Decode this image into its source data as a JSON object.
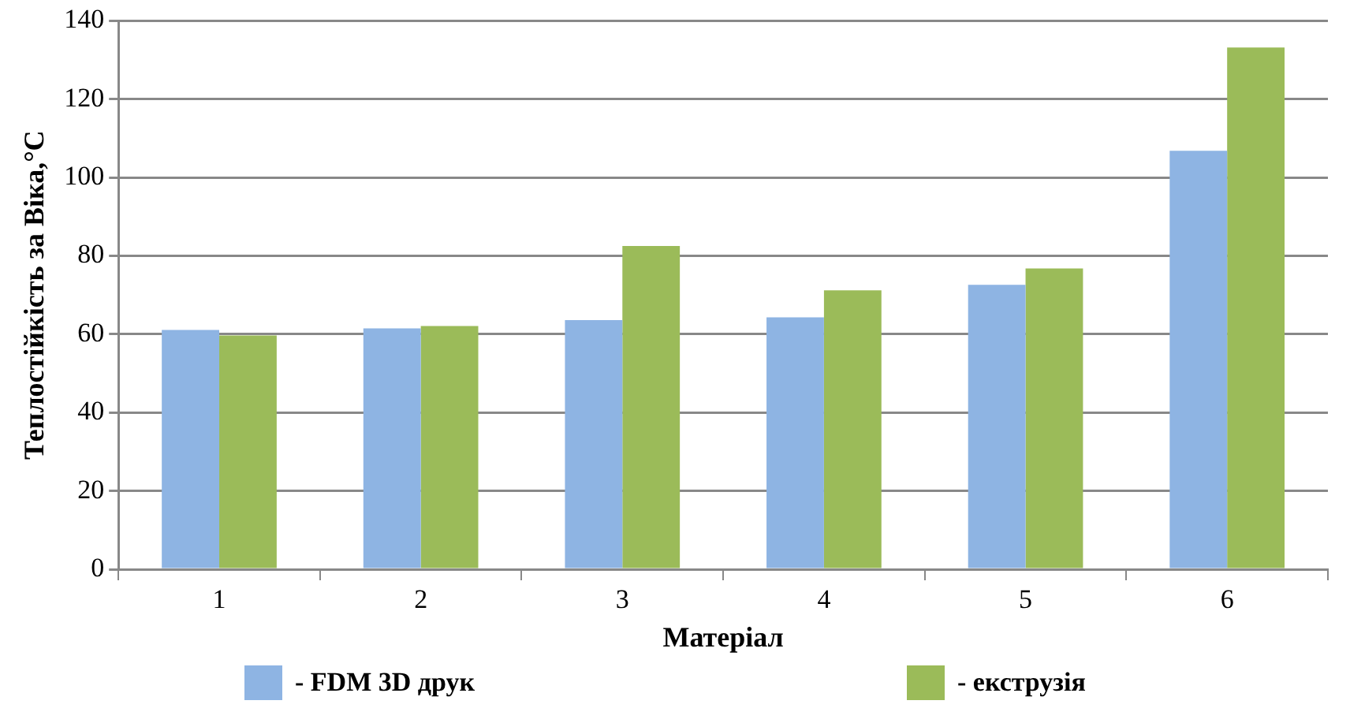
{
  "chart_data": {
    "type": "bar",
    "xlabel": "Матеріал",
    "ylabel": "Теплостійкість за Віка,°С",
    "categories": [
      "1",
      "2",
      "3",
      "4",
      "5",
      "6"
    ],
    "series": [
      {
        "name": "- FDM 3D друк",
        "color": "#8eb4e3",
        "values": [
          61.1,
          61.5,
          63.6,
          64.3,
          72.6,
          106.8
        ]
      },
      {
        "name": "- екструзія",
        "color": "#9bbb59",
        "values": [
          59.7,
          62.1,
          82.5,
          71.2,
          76.8,
          133.2
        ]
      }
    ],
    "ylim": [
      0,
      140
    ],
    "yticks": [
      0,
      20,
      40,
      60,
      80,
      100,
      120,
      140
    ],
    "grid": "y",
    "legend": "bottom"
  }
}
